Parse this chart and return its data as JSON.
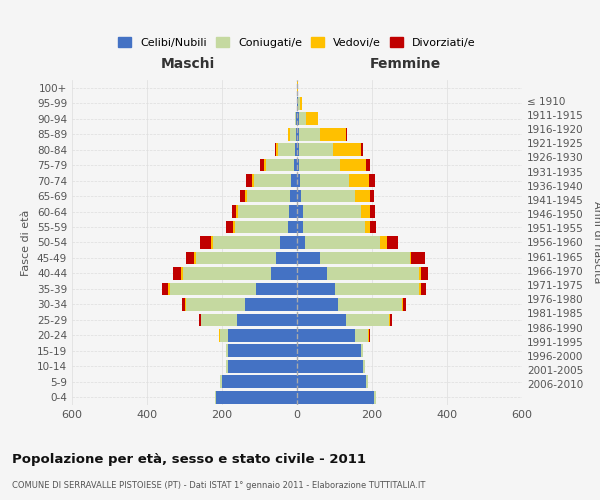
{
  "age_groups": [
    "0-4",
    "5-9",
    "10-14",
    "15-19",
    "20-24",
    "25-29",
    "30-34",
    "35-39",
    "40-44",
    "45-49",
    "50-54",
    "55-59",
    "60-64",
    "65-69",
    "70-74",
    "75-79",
    "80-84",
    "85-89",
    "90-94",
    "95-99",
    "100+"
  ],
  "birth_years": [
    "2006-2010",
    "2001-2005",
    "1996-2000",
    "1991-1995",
    "1986-1990",
    "1981-1985",
    "1976-1980",
    "1971-1975",
    "1966-1970",
    "1961-1965",
    "1956-1960",
    "1951-1955",
    "1946-1950",
    "1941-1945",
    "1936-1940",
    "1931-1935",
    "1926-1930",
    "1921-1925",
    "1916-1920",
    "1911-1915",
    "≤ 1910"
  ],
  "colors": {
    "celibi": "#4472c4",
    "coniugati": "#c5d9a0",
    "vedovi": "#ffc000",
    "divorziati": "#c00000",
    "background": "#f5f5f5",
    "grid": "#cccccc"
  },
  "maschi": {
    "celibi": [
      215,
      200,
      185,
      185,
      185,
      160,
      140,
      110,
      70,
      55,
      45,
      25,
      22,
      18,
      15,
      8,
      5,
      3,
      2,
      1,
      0
    ],
    "coniugati": [
      5,
      5,
      5,
      5,
      20,
      95,
      155,
      230,
      235,
      215,
      180,
      140,
      135,
      115,
      100,
      75,
      45,
      15,
      3,
      0,
      0
    ],
    "vedovi": [
      0,
      0,
      0,
      0,
      2,
      2,
      3,
      5,
      5,
      5,
      5,
      5,
      5,
      5,
      5,
      5,
      5,
      5,
      0,
      0,
      0
    ],
    "divorziati": [
      0,
      0,
      0,
      0,
      2,
      5,
      8,
      15,
      20,
      20,
      30,
      20,
      12,
      15,
      15,
      10,
      5,
      0,
      0,
      0,
      0
    ]
  },
  "femmine": {
    "celibi": [
      205,
      185,
      175,
      170,
      155,
      130,
      110,
      100,
      80,
      60,
      20,
      15,
      15,
      10,
      8,
      5,
      5,
      5,
      5,
      2,
      1
    ],
    "coniugati": [
      5,
      5,
      5,
      5,
      35,
      115,
      170,
      225,
      245,
      240,
      200,
      165,
      155,
      145,
      130,
      110,
      90,
      55,
      20,
      5,
      0
    ],
    "vedovi": [
      0,
      0,
      0,
      0,
      2,
      2,
      3,
      5,
      5,
      5,
      20,
      15,
      25,
      40,
      55,
      70,
      75,
      70,
      30,
      5,
      1
    ],
    "divorziati": [
      0,
      0,
      0,
      0,
      2,
      5,
      8,
      15,
      20,
      35,
      30,
      15,
      12,
      10,
      15,
      10,
      5,
      3,
      2,
      0,
      0
    ]
  },
  "xlim": 600,
  "title": "Popolazione per età, sesso e stato civile - 2011",
  "subtitle": "COMUNE DI SERRAVALLE PISTOIESE (PT) - Dati ISTAT 1° gennaio 2011 - Elaborazione TUTTITALIA.IT",
  "xlabel_left": "Maschi",
  "xlabel_right": "Femmine",
  "ylabel_left": "Fasce di età",
  "ylabel_right": "Anni di nascita",
  "legend_labels": [
    "Celibi/Nubili",
    "Coniugati/e",
    "Vedovi/e",
    "Divorziati/e"
  ]
}
